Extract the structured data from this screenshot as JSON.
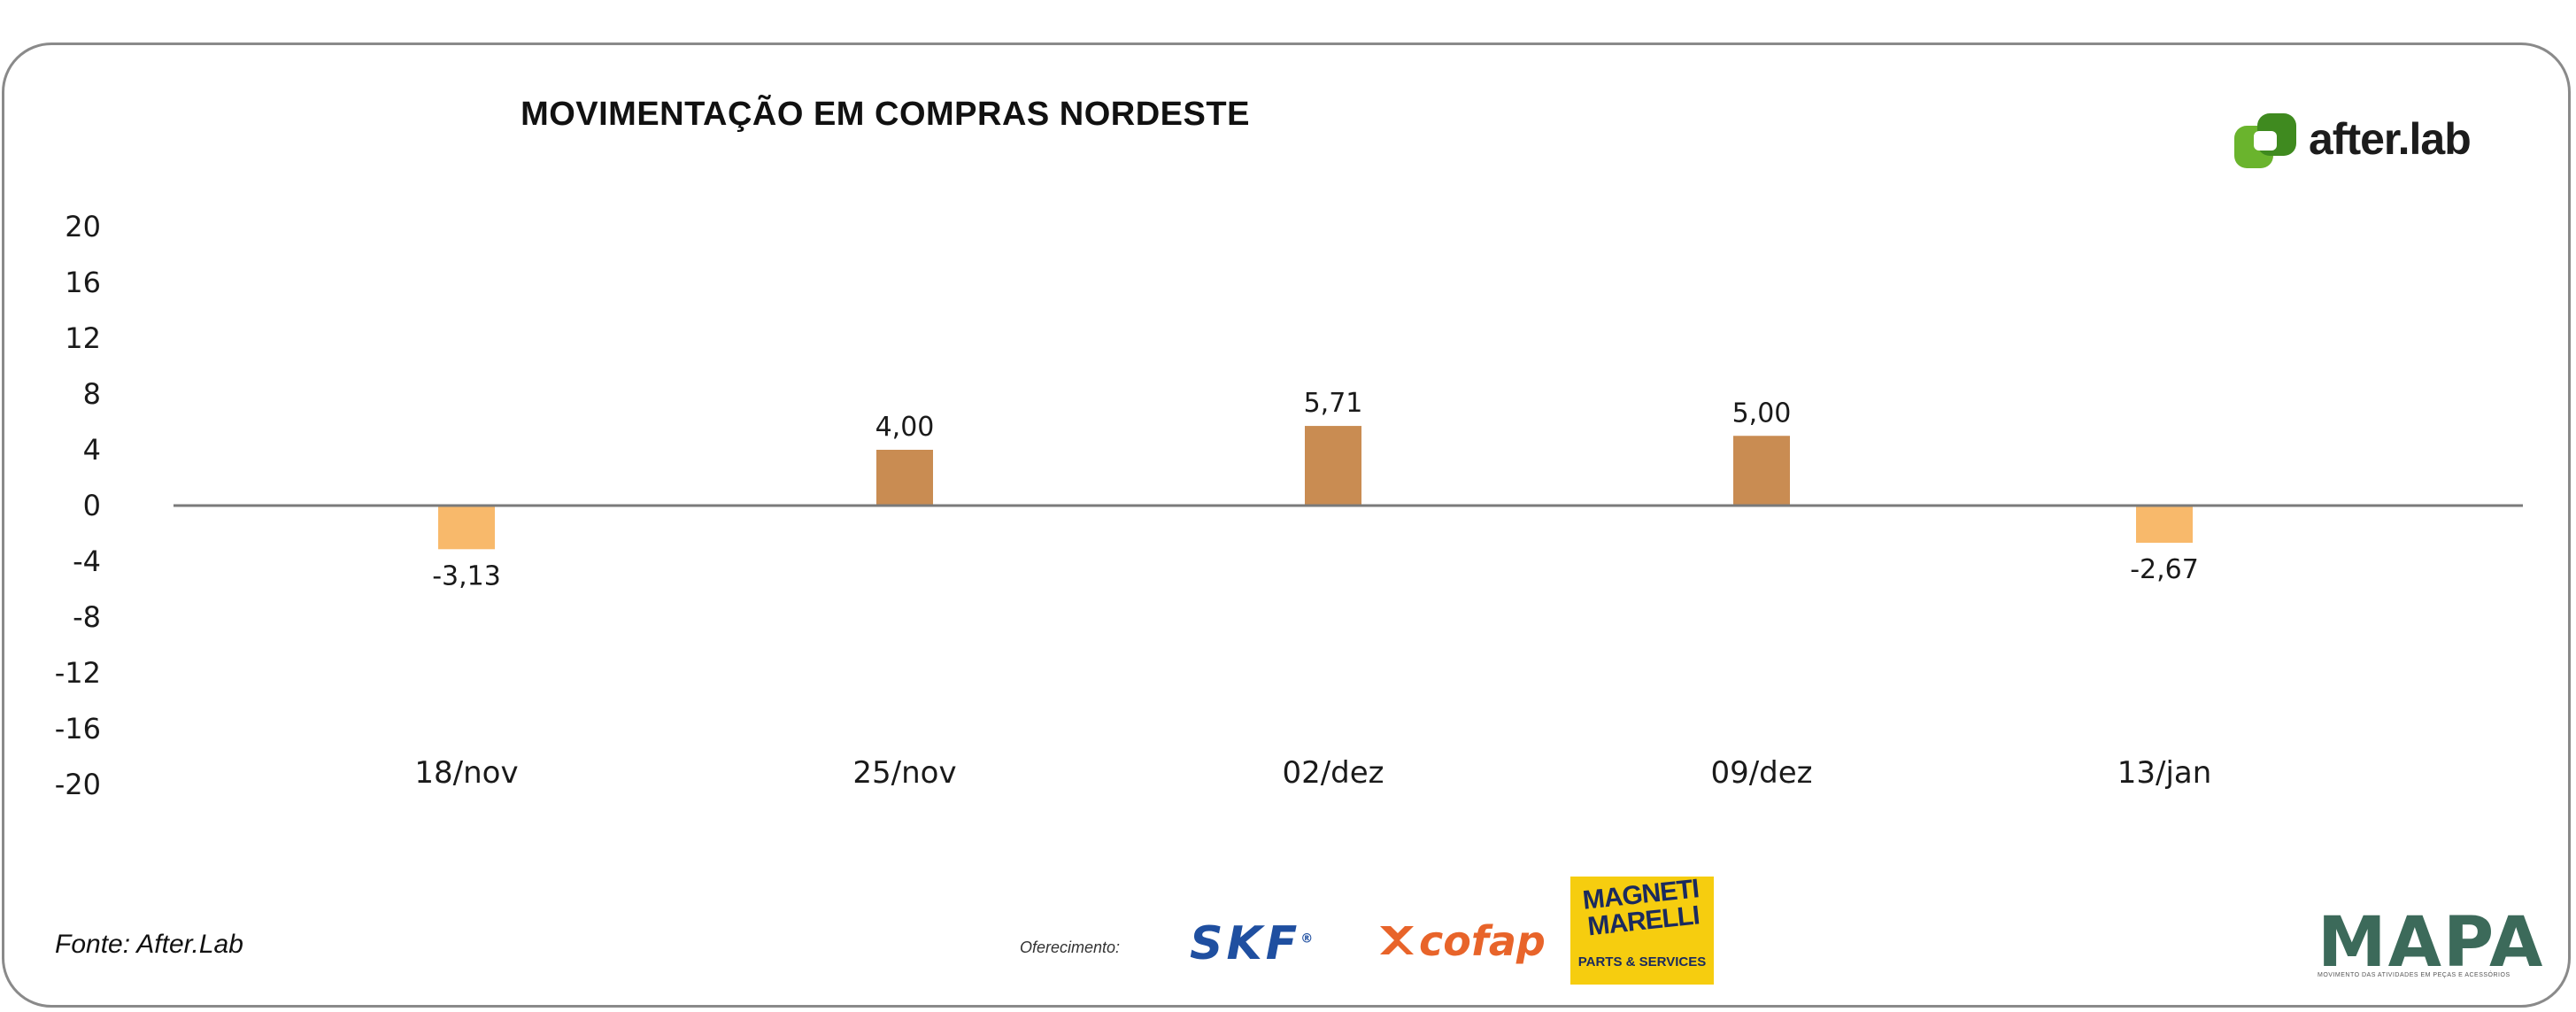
{
  "chart_data": {
    "type": "bar",
    "title": "MOVIMENTAÇÃO EM COMPRAS NORDESTE",
    "categories": [
      "18/nov",
      "25/nov",
      "02/dez",
      "09/dez",
      "13/jan"
    ],
    "values": [
      -3.13,
      4.0,
      5.71,
      5.0,
      -2.67
    ],
    "data_labels": [
      "-3,13",
      "4,00",
      "5,71",
      "5,00",
      "-2,67"
    ],
    "yticks": [
      "20",
      "16",
      "12",
      "8",
      "4",
      "0",
      "-4",
      "-8",
      "-12",
      "-16",
      "-20"
    ],
    "ylim": [
      -20,
      20
    ],
    "grid": false,
    "colors": {
      "positive": "#c98c52",
      "negative": "#f8b96b",
      "zero_line": "#7a7a7a"
    }
  },
  "brand": {
    "name": "after.lab",
    "color": "#6ab42d"
  },
  "footer": {
    "source": "Fonte: After.Lab",
    "sponsor_label": "Oferecimento:",
    "sponsors": {
      "skf": "SKF",
      "cofap": "cofap",
      "magneti_marelli": "MAGNETI MARELLI",
      "magneti_sub": "PARTS & SERVICES"
    },
    "mapa": "MAPA",
    "mapa_tagline": "MOVIMENTO DAS ATIVIDADES EM PEÇAS E ACESSÓRIOS"
  }
}
